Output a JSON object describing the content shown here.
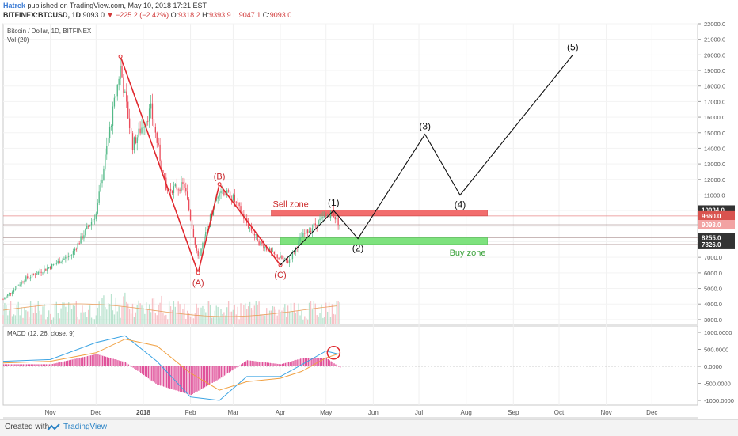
{
  "header": {
    "author": "Hatrek",
    "published": "published on TradingView.com, May 10, 2018 17:21 EST",
    "symbol": "BITFINEX:BTCUSD, 1D",
    "last": "9093.0",
    "change": "−225.2 (−2.42%)",
    "o_label": "O:",
    "o": "9318.2",
    "h_label": "H:",
    "h": "9393.9",
    "l_label": "L:",
    "l": "9047.1",
    "c_label": "C:",
    "c": "9093.0"
  },
  "footer": {
    "created": "Created with",
    "brand": "TradingView"
  },
  "colors": {
    "up": "#53b987",
    "down": "#eb4d5c",
    "sell_zone": "#f26d6d",
    "buy_zone": "#7ee27e",
    "wave_red": "#e0282e",
    "macd": "#3aa3e3",
    "signal": "#f0a041"
  },
  "chart_data": {
    "type": "line",
    "title": "Bitcoin / Dollar, 1D, BITFINEX",
    "volume_label": "Vol (20)",
    "macd_label": "MACD (12, 26, close, 9)",
    "x_ticks": [
      "Nov",
      "Dec",
      "2018",
      "Feb",
      "Mar",
      "Apr",
      "May",
      "Jun",
      "Jul",
      "Aug",
      "Sep",
      "Oct",
      "Nov",
      "Dec"
    ],
    "y_ticks": [
      "22000.0",
      "21000.0",
      "20000.0",
      "19000.0",
      "18000.0",
      "17000.0",
      "16000.0",
      "15000.0",
      "14000.0",
      "13000.0",
      "12000.0",
      "11000.0",
      "10000.0",
      "9000.0",
      "8000.0",
      "7000.0",
      "6000.0",
      "5000.0",
      "4000.0",
      "3000.0"
    ],
    "ylim": [
      3000,
      22000
    ],
    "macd_ticks": [
      "1000.0000",
      "500.0000",
      "0.0000",
      "-500.0000",
      "-1000.0000"
    ],
    "macd_ylim": [
      -1000,
      1000
    ],
    "price_labels": [
      {
        "text": "10034.0",
        "value": 10034,
        "style": "dark"
      },
      {
        "text": "9660.0",
        "value": 9660,
        "style": "red"
      },
      {
        "text": "9093.0",
        "value": 9093,
        "style": "light"
      },
      {
        "text": "8255.0",
        "value": 8255,
        "style": "dark"
      },
      {
        "text": "7826.0",
        "value": 7826,
        "style": "dark"
      }
    ],
    "zones": [
      {
        "label": "Sell zone",
        "from": 9660,
        "to": 10034,
        "x_start": "2018-03-26",
        "x_end": "2018-08-15"
      },
      {
        "label": "Buy zone",
        "from": 7826,
        "to": 8255,
        "x_start": "2018-04-01",
        "x_end": "2018-08-15"
      }
    ],
    "price_series": {
      "name": "BTCUSD close",
      "x": [
        "2017-10-01",
        "2017-10-15",
        "2017-11-01",
        "2017-11-15",
        "2017-12-01",
        "2017-12-10",
        "2017-12-17",
        "2017-12-25",
        "2018-01-06",
        "2018-01-16",
        "2018-01-28",
        "2018-02-06",
        "2018-02-14",
        "2018-02-20",
        "2018-03-01",
        "2018-03-10",
        "2018-03-18",
        "2018-03-27",
        "2018-04-06",
        "2018-04-15",
        "2018-04-25",
        "2018-05-05",
        "2018-05-10"
      ],
      "y": [
        4300,
        5600,
        6400,
        7200,
        9800,
        15200,
        19200,
        14200,
        16500,
        11300,
        11600,
        6900,
        9500,
        11400,
        10800,
        9200,
        8000,
        7200,
        6700,
        8300,
        9200,
        9900,
        9093
      ]
    },
    "corrective_wave": {
      "labels": [
        "",
        "(A)",
        "(B)",
        "(C)"
      ],
      "x": [
        "2017-12-17",
        "2018-02-06",
        "2018-02-20",
        "2018-04-01"
      ],
      "y": [
        19900,
        6000,
        11700,
        6500
      ]
    },
    "impulse_projection": {
      "labels": [
        "(1)",
        "(2)",
        "(3)",
        "(4)",
        "(5)"
      ],
      "x": [
        "2018-04-01",
        "2018-05-06",
        "2018-05-22",
        "2018-07-05",
        "2018-07-28",
        "2018-10-10"
      ],
      "y": [
        6500,
        10000,
        8200,
        14900,
        11000,
        20000
      ]
    },
    "macd_series": {
      "x": [
        "2017-10-01",
        "2017-11-01",
        "2017-12-01",
        "2017-12-20",
        "2018-01-10",
        "2018-02-01",
        "2018-02-20",
        "2018-03-10",
        "2018-04-01",
        "2018-04-15",
        "2018-05-01",
        "2018-05-10"
      ],
      "macd": [
        150,
        200,
        700,
        900,
        150,
        -900,
        -1000,
        -300,
        -300,
        50,
        450,
        350
      ],
      "signal": [
        100,
        150,
        400,
        800,
        600,
        -200,
        -700,
        -450,
        -350,
        -150,
        250,
        380
      ]
    }
  }
}
